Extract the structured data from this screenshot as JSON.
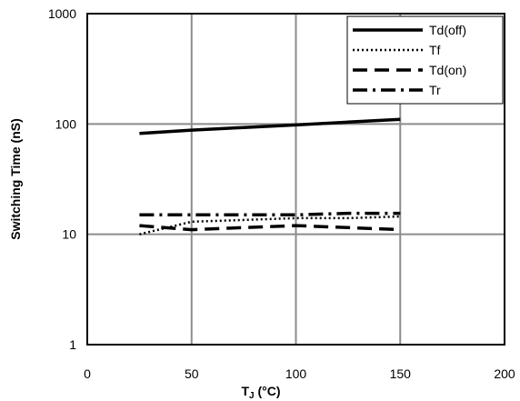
{
  "chart_data": {
    "type": "line",
    "xlabel_main": "T",
    "xlabel_sub": "J",
    "xlabel_unit": " (°C)",
    "ylabel": "Switching Time (nS)",
    "xlim": [
      0,
      200
    ],
    "ylim": [
      1,
      1000
    ],
    "yscale": "log",
    "grid": true,
    "legend_position": "top-right",
    "x_ticks": [
      "0",
      "50",
      "100",
      "150",
      "200"
    ],
    "y_ticks": [
      "1",
      "10",
      "100",
      "1000"
    ],
    "series": [
      {
        "name": "Td(off)",
        "style": "solid",
        "x": [
          25,
          50,
          75,
          100,
          125,
          150
        ],
        "y": [
          82,
          88,
          93,
          98,
          104,
          110
        ]
      },
      {
        "name": "Tf",
        "style": "dotted",
        "x": [
          25,
          50,
          75,
          100,
          125,
          150
        ],
        "y": [
          10,
          13,
          13.5,
          14,
          14,
          14.5
        ]
      },
      {
        "name": "Td(on)",
        "style": "dashed",
        "x": [
          25,
          50,
          75,
          100,
          125,
          150
        ],
        "y": [
          12,
          11,
          11.5,
          12,
          11.5,
          11
        ]
      },
      {
        "name": "Tr",
        "style": "dashdot",
        "x": [
          25,
          50,
          75,
          100,
          125,
          150
        ],
        "y": [
          15,
          15,
          15,
          15,
          15.5,
          15.5
        ]
      }
    ]
  }
}
